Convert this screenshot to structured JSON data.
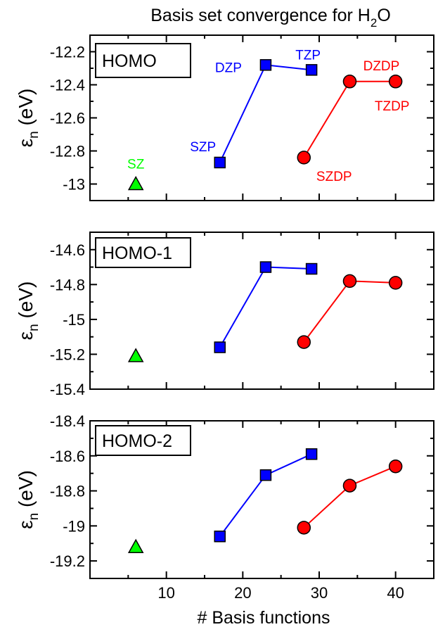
{
  "title": {
    "main": "Basis set convergence for H",
    "sub": "2",
    "tail": "O"
  },
  "xlabel": "# Basis functions",
  "ylabel": {
    "symbol": "ε",
    "sub": "n",
    "unit": "(eV)"
  },
  "colors": {
    "blue": "#0000ff",
    "red": "#ff0000",
    "green": "#00ff00",
    "axis": "#000000"
  },
  "chart_data": [
    {
      "type": "line",
      "panel_label": "HOMO",
      "xlim": [
        0,
        45
      ],
      "ylim": [
        -13.1,
        -12.1
      ],
      "xticks": [
        10,
        20,
        30,
        40
      ],
      "yticks": [
        -12.2,
        -12.4,
        -12.6,
        -12.8,
        -13
      ],
      "ytick_labels": [
        "-12.2",
        "-12.4",
        "-12.6",
        "-12.8",
        "-13"
      ],
      "show_xtick_labels": false,
      "series": [
        {
          "color": "green",
          "marker": "triangle",
          "x": [
            6
          ],
          "y": [
            -13.0
          ],
          "labels": [
            "SZ"
          ]
        },
        {
          "color": "blue",
          "marker": "square",
          "x": [
            17,
            23,
            29
          ],
          "y": [
            -12.87,
            -12.28,
            -12.31
          ],
          "labels": [
            "SZP",
            "DZP",
            "TZP"
          ]
        },
        {
          "color": "red",
          "marker": "circle",
          "x": [
            28,
            34,
            40
          ],
          "y": [
            -12.84,
            -12.38,
            -12.38
          ],
          "labels": [
            "SZDP",
            "DZDP",
            "TZDP"
          ]
        }
      ]
    },
    {
      "type": "line",
      "panel_label": "HOMO-1",
      "xlim": [
        0,
        45
      ],
      "ylim": [
        -15.4,
        -14.5
      ],
      "xticks": [
        10,
        20,
        30,
        40
      ],
      "yticks": [
        -14.6,
        -14.8,
        -15,
        -15.2,
        -15.4
      ],
      "ytick_labels": [
        "-14.6",
        "-14.8",
        "-15",
        "-15.2",
        "-15.4"
      ],
      "show_xtick_labels": false,
      "series": [
        {
          "color": "green",
          "marker": "triangle",
          "x": [
            6
          ],
          "y": [
            -15.21
          ]
        },
        {
          "color": "blue",
          "marker": "square",
          "x": [
            17,
            23,
            29
          ],
          "y": [
            -15.16,
            -14.7,
            -14.71
          ]
        },
        {
          "color": "red",
          "marker": "circle",
          "x": [
            28,
            34,
            40
          ],
          "y": [
            -15.13,
            -14.78,
            -14.79
          ]
        }
      ]
    },
    {
      "type": "line",
      "panel_label": "HOMO-2",
      "xlim": [
        0,
        45
      ],
      "ylim": [
        -19.3,
        -18.4
      ],
      "xticks": [
        10,
        20,
        30,
        40
      ],
      "xtick_labels": [
        "10",
        "20",
        "30",
        "40"
      ],
      "yticks": [
        -18.4,
        -18.6,
        -18.8,
        -19,
        -19.2
      ],
      "ytick_labels": [
        "-18.4",
        "-18.6",
        "-18.8",
        "-19",
        "-19.2"
      ],
      "show_xtick_labels": true,
      "series": [
        {
          "color": "green",
          "marker": "triangle",
          "x": [
            6
          ],
          "y": [
            -19.12
          ]
        },
        {
          "color": "blue",
          "marker": "square",
          "x": [
            17,
            23,
            29
          ],
          "y": [
            -19.06,
            -18.71,
            -18.59
          ]
        },
        {
          "color": "red",
          "marker": "circle",
          "x": [
            28,
            34,
            40
          ],
          "y": [
            -19.01,
            -18.77,
            -18.66
          ]
        }
      ]
    }
  ]
}
